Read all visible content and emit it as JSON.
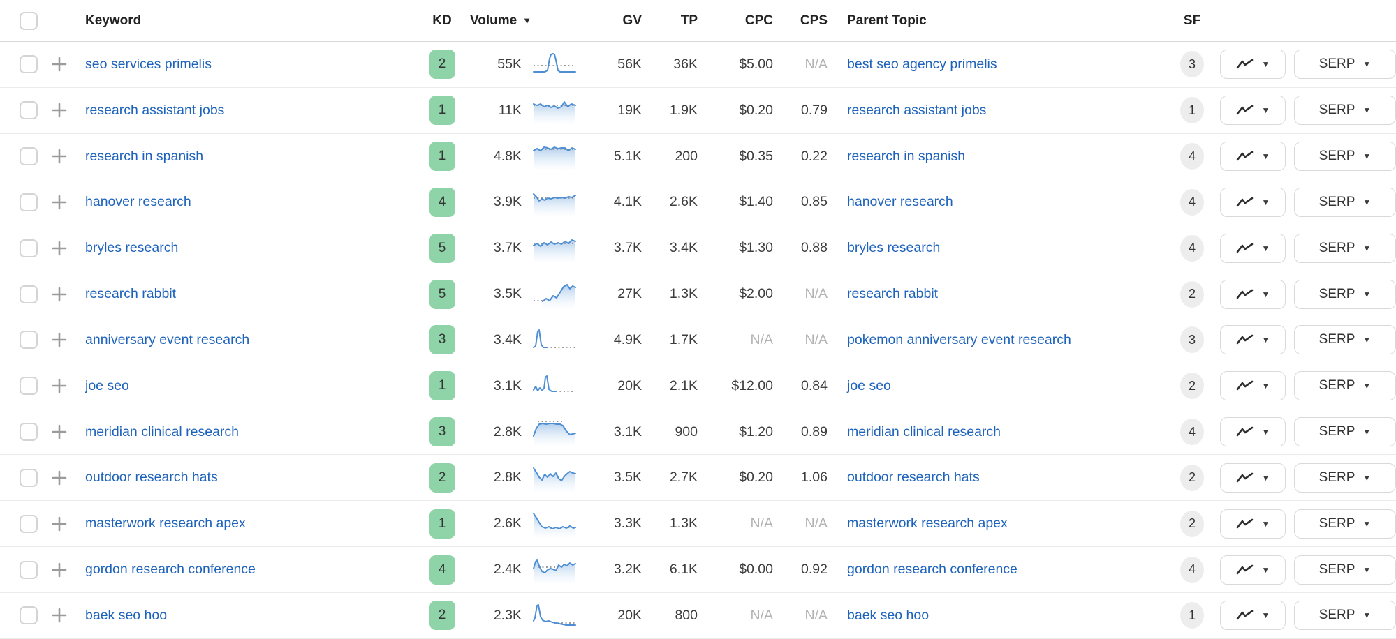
{
  "table": {
    "header": {
      "keyword": "Keyword",
      "kd": "KD",
      "volume": "Volume",
      "gv": "GV",
      "tp": "TP",
      "cpc": "CPC",
      "cps": "CPS",
      "parent_topic": "Parent Topic",
      "sf": "SF"
    },
    "icons": {
      "caret": "▼"
    },
    "buttons": {
      "serp": "SERP"
    },
    "sort": {
      "column": "Volume",
      "direction": "desc"
    },
    "rows": [
      {
        "keyword": "seo services primelis",
        "kd": "2",
        "volume": "55K",
        "gv": "56K",
        "tp": "36K",
        "cpc": "$5.00",
        "cps": "N/A",
        "parent_topic": "best seo agency primelis",
        "sf": "3",
        "spark": {
          "fill": false,
          "solid": [
            [
              1,
              31
            ],
            [
              17,
              31
            ],
            [
              21,
              29
            ],
            [
              24,
              12
            ],
            [
              26,
              6
            ],
            [
              29,
              5
            ],
            [
              31,
              6
            ],
            [
              33,
              14
            ],
            [
              36,
              29
            ],
            [
              39,
              31
            ],
            [
              61,
              31
            ]
          ],
          "dotted": [
            [
              1,
              22
            ],
            [
              61,
              22
            ]
          ]
        }
      },
      {
        "keyword": "research assistant jobs",
        "kd": "1",
        "volume": "11K",
        "gv": "19K",
        "tp": "1.9K",
        "cpc": "$0.20",
        "cps": "0.79",
        "parent_topic": "research assistant jobs",
        "sf": "1",
        "spark": {
          "fill": true,
          "solid": [
            [
              1,
              11
            ],
            [
              6,
              13
            ],
            [
              11,
              11
            ],
            [
              16,
              15
            ],
            [
              21,
              13
            ],
            [
              26,
              16
            ],
            [
              31,
              14
            ],
            [
              36,
              17
            ],
            [
              41,
              15
            ],
            [
              45,
              8
            ],
            [
              50,
              15
            ],
            [
              55,
              11
            ],
            [
              61,
              13
            ]
          ],
          "dotted": [
            [
              1,
              13
            ],
            [
              61,
              13
            ]
          ]
        }
      },
      {
        "keyword": "research in spanish",
        "kd": "1",
        "volume": "4.8K",
        "gv": "5.1K",
        "tp": "200",
        "cpc": "$0.35",
        "cps": "0.22",
        "parent_topic": "research in spanish",
        "sf": "4",
        "spark": {
          "fill": true,
          "solid": [
            [
              1,
              12
            ],
            [
              6,
              9
            ],
            [
              11,
              12
            ],
            [
              16,
              7
            ],
            [
              21,
              8
            ],
            [
              26,
              10
            ],
            [
              31,
              7
            ],
            [
              36,
              9
            ],
            [
              41,
              8
            ],
            [
              46,
              8
            ],
            [
              51,
              12
            ],
            [
              56,
              8
            ],
            [
              61,
              10
            ]
          ],
          "dotted": [
            [
              1,
              10
            ],
            [
              61,
              10
            ]
          ]
        }
      },
      {
        "keyword": "hanover research",
        "kd": "4",
        "volume": "3.9K",
        "gv": "4.1K",
        "tp": "2.6K",
        "cpc": "$1.40",
        "cps": "0.85",
        "parent_topic": "hanover research",
        "sf": "4",
        "spark": {
          "fill": true,
          "solid": [
            [
              1,
              8
            ],
            [
              5,
              12
            ],
            [
              9,
              18
            ],
            [
              13,
              15
            ],
            [
              17,
              17
            ],
            [
              21,
              14
            ],
            [
              26,
              15
            ],
            [
              31,
              13
            ],
            [
              36,
              14
            ],
            [
              41,
              13
            ],
            [
              46,
              14
            ],
            [
              51,
              12
            ],
            [
              56,
              13
            ],
            [
              61,
              10
            ]
          ],
          "dotted": [
            [
              1,
              14
            ],
            [
              61,
              14
            ]
          ]
        }
      },
      {
        "keyword": "bryles research",
        "kd": "5",
        "volume": "3.7K",
        "gv": "3.7K",
        "tp": "3.4K",
        "cpc": "$1.30",
        "cps": "0.88",
        "parent_topic": "bryles research",
        "sf": "4",
        "spark": {
          "fill": true,
          "solid": [
            [
              1,
              16
            ],
            [
              6,
              13
            ],
            [
              11,
              17
            ],
            [
              16,
              12
            ],
            [
              21,
              15
            ],
            [
              26,
              11
            ],
            [
              31,
              14
            ],
            [
              36,
              12
            ],
            [
              41,
              14
            ],
            [
              46,
              10
            ],
            [
              51,
              13
            ],
            [
              56,
              8
            ],
            [
              61,
              10
            ]
          ],
          "dotted": [
            [
              1,
              13
            ],
            [
              61,
              13
            ]
          ]
        }
      },
      {
        "keyword": "research rabbit",
        "kd": "5",
        "volume": "3.5K",
        "gv": "27K",
        "tp": "1.3K",
        "cpc": "$2.00",
        "cps": "N/A",
        "parent_topic": "research rabbit",
        "sf": "2",
        "spark": {
          "fill": true,
          "solid": [
            [
              14,
              30
            ],
            [
              19,
              26
            ],
            [
              24,
              29
            ],
            [
              29,
              22
            ],
            [
              34,
              25
            ],
            [
              39,
              17
            ],
            [
              44,
              9
            ],
            [
              49,
              6
            ],
            [
              53,
              12
            ],
            [
              57,
              8
            ],
            [
              61,
              10
            ]
          ],
          "dotted": [
            [
              1,
              29
            ],
            [
              14,
              29
            ]
          ]
        }
      },
      {
        "keyword": "anniversary event research",
        "kd": "3",
        "volume": "3.4K",
        "gv": "4.9K",
        "tp": "1.7K",
        "cpc": "N/A",
        "cps": "N/A",
        "parent_topic": "pokemon anniversary event research",
        "sf": "3",
        "spark": {
          "fill": false,
          "solid": [
            [
              1,
              31
            ],
            [
              4,
              29
            ],
            [
              7,
              8
            ],
            [
              9,
              6
            ],
            [
              12,
              27
            ],
            [
              15,
              31
            ],
            [
              20,
              31
            ]
          ],
          "dotted": [
            [
              20,
              31
            ],
            [
              61,
              31
            ]
          ]
        }
      },
      {
        "keyword": "joe seo",
        "kd": "1",
        "volume": "3.1K",
        "gv": "20K",
        "tp": "2.1K",
        "cpc": "$12.00",
        "cps": "0.84",
        "parent_topic": "joe seo",
        "sf": "2",
        "spark": {
          "fill": false,
          "solid": [
            [
              1,
              26
            ],
            [
              4,
              21
            ],
            [
              7,
              27
            ],
            [
              10,
              23
            ],
            [
              13,
              26
            ],
            [
              16,
              24
            ],
            [
              18,
              8
            ],
            [
              20,
              6
            ],
            [
              23,
              25
            ],
            [
              27,
              28
            ],
            [
              33,
              28
            ]
          ],
          "dotted": [
            [
              33,
              28
            ],
            [
              61,
              28
            ]
          ]
        }
      },
      {
        "keyword": "meridian clinical research",
        "kd": "3",
        "volume": "2.8K",
        "gv": "3.1K",
        "tp": "900",
        "cpc": "$1.20",
        "cps": "0.89",
        "parent_topic": "meridian clinical research",
        "sf": "4",
        "spark": {
          "fill": true,
          "solid": [
            [
              1,
              26
            ],
            [
              5,
              15
            ],
            [
              9,
              9
            ],
            [
              14,
              8
            ],
            [
              19,
              9
            ],
            [
              24,
              8
            ],
            [
              29,
              8
            ],
            [
              34,
              9
            ],
            [
              39,
              9
            ],
            [
              43,
              11
            ],
            [
              48,
              19
            ],
            [
              53,
              24
            ],
            [
              57,
              23
            ],
            [
              61,
              22
            ]
          ],
          "dotted": [
            [
              7,
              5
            ],
            [
              45,
              5
            ]
          ]
        }
      },
      {
        "keyword": "outdoor research hats",
        "kd": "2",
        "volume": "2.8K",
        "gv": "3.5K",
        "tp": "2.7K",
        "cpc": "$0.20",
        "cps": "1.06",
        "parent_topic": "outdoor research hats",
        "sf": "2",
        "spark": {
          "fill": true,
          "solid": [
            [
              1,
              6
            ],
            [
              5,
              12
            ],
            [
              9,
              19
            ],
            [
              13,
              23
            ],
            [
              17,
              15
            ],
            [
              21,
              19
            ],
            [
              25,
              14
            ],
            [
              29,
              18
            ],
            [
              33,
              13
            ],
            [
              37,
              21
            ],
            [
              41,
              24
            ],
            [
              45,
              18
            ],
            [
              49,
              14
            ],
            [
              53,
              11
            ],
            [
              57,
              13
            ],
            [
              61,
              14
            ]
          ]
        }
      },
      {
        "keyword": "masterwork research apex",
        "kd": "1",
        "volume": "2.6K",
        "gv": "3.3K",
        "tp": "1.3K",
        "cpc": "N/A",
        "cps": "N/A",
        "parent_topic": "masterwork research apex",
        "sf": "2",
        "spark": {
          "fill": true,
          "solid": [
            [
              1,
              5
            ],
            [
              5,
              11
            ],
            [
              9,
              18
            ],
            [
              13,
              24
            ],
            [
              18,
              26
            ],
            [
              23,
              24
            ],
            [
              28,
              27
            ],
            [
              33,
              25
            ],
            [
              38,
              27
            ],
            [
              43,
              24
            ],
            [
              48,
              26
            ],
            [
              53,
              23
            ],
            [
              58,
              26
            ],
            [
              61,
              25
            ]
          ],
          "dotted": [
            [
              45,
              25
            ],
            [
              61,
              25
            ]
          ]
        }
      },
      {
        "keyword": "gordon research conference",
        "kd": "4",
        "volume": "2.4K",
        "gv": "3.2K",
        "tp": "6.1K",
        "cpc": "$0.00",
        "cps": "0.92",
        "parent_topic": "gordon research conference",
        "sf": "4",
        "spark": {
          "fill": true,
          "solid": [
            [
              1,
              18
            ],
            [
              4,
              8
            ],
            [
              6,
              6
            ],
            [
              9,
              14
            ],
            [
              13,
              22
            ],
            [
              17,
              24
            ],
            [
              21,
              20
            ],
            [
              25,
              18
            ],
            [
              29,
              19
            ],
            [
              33,
              21
            ],
            [
              37,
              13
            ],
            [
              41,
              16
            ],
            [
              45,
              12
            ],
            [
              49,
              14
            ],
            [
              53,
              10
            ],
            [
              57,
              13
            ],
            [
              61,
              11
            ]
          ],
          "dotted": [
            [
              8,
              16
            ],
            [
              34,
              16
            ]
          ]
        }
      },
      {
        "keyword": "baek seo hoo",
        "kd": "2",
        "volume": "2.3K",
        "gv": "20K",
        "tp": "800",
        "cpc": "N/A",
        "cps": "N/A",
        "parent_topic": "baek seo hoo",
        "sf": "1",
        "spark": {
          "fill": false,
          "solid": [
            [
              1,
              28
            ],
            [
              3,
              24
            ],
            [
              6,
              6
            ],
            [
              8,
              5
            ],
            [
              11,
              22
            ],
            [
              14,
              27
            ],
            [
              18,
              29
            ],
            [
              23,
              28
            ],
            [
              28,
              30
            ],
            [
              33,
              31
            ],
            [
              38,
              32
            ],
            [
              43,
              33
            ],
            [
              48,
              34
            ],
            [
              53,
              34
            ],
            [
              61,
              34
            ]
          ],
          "dotted": [
            [
              30,
              31
            ],
            [
              61,
              31
            ]
          ]
        }
      }
    ]
  },
  "colors": {
    "link_blue": "#1e63bb",
    "kd_badge_green": "#8fd3a8",
    "sf_badge_gray": "#ededed",
    "na_gray": "#b3b3b3",
    "spark_line_blue": "#4e8fd3"
  }
}
